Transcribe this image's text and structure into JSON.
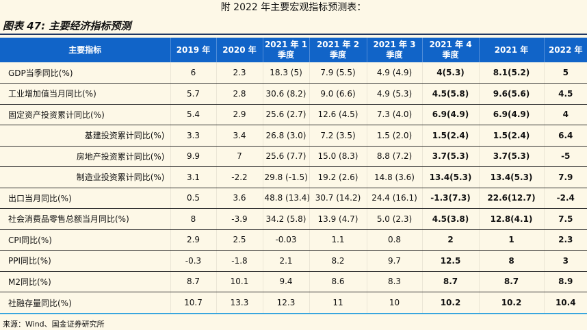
{
  "page": {
    "top_title": "附 2022 年主要宏观指标预测表：",
    "figure_title": "图表 47:  主要经济指标预测",
    "source": "来源：Wind、国金证券研究所"
  },
  "colors": {
    "background": "#FDF8E7",
    "header_bg": "#1164C8",
    "header_text": "#FFFFFF",
    "title_rule": "#1F3864",
    "bottom_rule": "#3AA6DE",
    "row_line": "#2F2F2F"
  },
  "table": {
    "headers": [
      {
        "l1": "主要指标",
        "l2": ""
      },
      {
        "l1": "2019 年",
        "l2": ""
      },
      {
        "l1": "2020 年",
        "l2": ""
      },
      {
        "l1": "2021 年 1",
        "l2": "季度"
      },
      {
        "l1": "2021 年 2",
        "l2": "季度"
      },
      {
        "l1": "2021 年 3",
        "l2": "季度"
      },
      {
        "l1": "2021 年 4",
        "l2": "季度"
      },
      {
        "l1": "2021 年",
        "l2": ""
      },
      {
        "l1": "2022 年",
        "l2": ""
      }
    ],
    "rows": [
      {
        "label": "GDP当季同比(%)",
        "indent": false,
        "values": [
          "6",
          "2.3",
          "18.3 (5)",
          "7.9 (5.5)",
          "4.9 (4.9)",
          "4(5.3)",
          "8.1(5.2)",
          "5"
        ]
      },
      {
        "label": "工业增加值当月同比(%)",
        "indent": false,
        "values": [
          "5.7",
          "2.8",
          "30.6 (8.2)",
          "9.0 (6.6)",
          "4.9 (5.3)",
          "4.5(5.8)",
          "9.6(5.6)",
          "4.5"
        ]
      },
      {
        "label": "固定资产投资累计同比(%)",
        "indent": false,
        "values": [
          "5.4",
          "2.9",
          "25.6 (2.7)",
          "12.6 (4.5)",
          "7.3 (4.0)",
          "6.9(4.9)",
          "6.9(4.9)",
          "4"
        ]
      },
      {
        "label": "基建投资累计同比(%)",
        "indent": true,
        "values": [
          "3.3",
          "3.4",
          "26.8 (3.0)",
          "7.2 (3.5)",
          "1.5 (2.0)",
          "1.5(2.4)",
          "1.5(2.4)",
          "6.4"
        ]
      },
      {
        "label": "房地产投资累计同比(%)",
        "indent": true,
        "values": [
          "9.9",
          "7",
          "25.6 (7.7)",
          "15.0 (8.3)",
          "8.8 (7.2)",
          "3.7(5.3)",
          "3.7(5.3)",
          "-5"
        ]
      },
      {
        "label": "制造业投资累计同比(%)",
        "indent": true,
        "values": [
          "3.1",
          "-2.2",
          "29.8 (-1.5)",
          "19.2 (2.6)",
          "14.8 (3.6)",
          "13.4(5.3)",
          "13.4(5.3)",
          "7.9"
        ]
      },
      {
        "label": "出口当月同比(%)",
        "indent": false,
        "values": [
          "0.5",
          "3.6",
          "48.8 (13.4)",
          "30.7 (14.2)",
          "24.4 (16.1)",
          "-1.3(7.3)",
          "22.6(12.7)",
          "-2.4"
        ]
      },
      {
        "label": "社会消费品零售总额当月同比(%)",
        "indent": false,
        "values": [
          "8",
          "-3.9",
          "34.2 (5.8)",
          "13.9 (4.7)",
          "5.0 (2.3)",
          "4.5(3.8)",
          "12.8(4.1)",
          "7.5"
        ]
      },
      {
        "label": "CPI同比(%)",
        "indent": false,
        "values": [
          "2.9",
          "2.5",
          "-0.03",
          "1.1",
          "0.8",
          "2",
          "1",
          "2.3"
        ]
      },
      {
        "label": "PPI同比(%)",
        "indent": false,
        "values": [
          "-0.3",
          "-1.8",
          "2.1",
          "8.2",
          "9.7",
          "12.5",
          "8",
          "3"
        ]
      },
      {
        "label": "M2同比(%)",
        "indent": false,
        "values": [
          "8.7",
          "10.1",
          "9.4",
          "8.6",
          "8.3",
          "8.7",
          "8.7",
          "8.9"
        ]
      },
      {
        "label": "社融存量同比(%)",
        "indent": false,
        "values": [
          "10.7",
          "13.3",
          "12.3",
          "11",
          "10",
          "10.2",
          "10.2",
          "10.4"
        ]
      }
    ]
  }
}
